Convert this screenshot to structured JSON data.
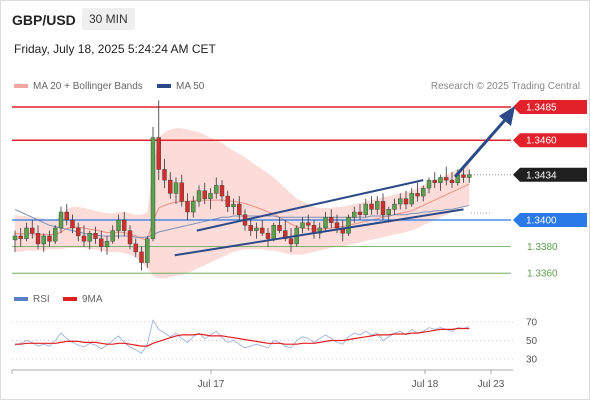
{
  "header": {
    "pair": "GBP/USD",
    "timeframe": "30 MIN",
    "datetime": "Friday, July 18, 2025 5:24:24 AM CET"
  },
  "legend": {
    "items": [
      {
        "label": "MA 20 + Bollinger Bands",
        "color": "#f4a7a0"
      },
      {
        "label": "MA 50",
        "color": "#2c4a87"
      }
    ],
    "credit": "Research © 2025 Trading Central"
  },
  "rsi_legend": {
    "items": [
      {
        "label": "RSI",
        "color": "#5b7ec9"
      },
      {
        "label": "9MA",
        "color": "#e02020"
      }
    ]
  },
  "colors": {
    "resistance": "#e3212b",
    "support": "#2979e8",
    "target_line": "#5aa14c",
    "bull_candle": "#5aa14c",
    "bear_candle": "#d0302b",
    "bb_fill": "#fbd6d2",
    "channel": "#2c4a87"
  },
  "chart_data": [
    {
      "type": "candlestick",
      "title": "GBP/USD",
      "xticks": [
        "Jul 17",
        "Jul 18",
        "Jul 23"
      ],
      "ylim": [
        1.3348,
        1.3493
      ],
      "levels": [
        {
          "value": 1.3485,
          "label": "1.3485",
          "kind": "resistance"
        },
        {
          "value": 1.346,
          "label": "1.3460",
          "kind": "resistance"
        },
        {
          "value": 1.3434,
          "label": "1.3434",
          "kind": "last_price"
        },
        {
          "value": 1.34,
          "label": "1.3400",
          "kind": "pivot"
        },
        {
          "value": 1.338,
          "label": "1.3380",
          "kind": "support"
        },
        {
          "value": 1.336,
          "label": "1.3360",
          "kind": "support"
        }
      ],
      "ohlc": [
        [
          1.3385,
          1.3392,
          1.3376,
          1.3388
        ],
        [
          1.3388,
          1.3394,
          1.338,
          1.3386
        ],
        [
          1.3386,
          1.3398,
          1.3384,
          1.3394
        ],
        [
          1.3394,
          1.34,
          1.3386,
          1.339
        ],
        [
          1.339,
          1.3396,
          1.3378,
          1.3382
        ],
        [
          1.3382,
          1.339,
          1.3376,
          1.3388
        ],
        [
          1.3388,
          1.3392,
          1.338,
          1.3384
        ],
        [
          1.3384,
          1.3396,
          1.3382,
          1.3394
        ],
        [
          1.3394,
          1.341,
          1.339,
          1.3406
        ],
        [
          1.3406,
          1.3412,
          1.3396,
          1.34
        ],
        [
          1.34,
          1.3404,
          1.339,
          1.3394
        ],
        [
          1.3394,
          1.3398,
          1.3384,
          1.3388
        ],
        [
          1.3388,
          1.3396,
          1.338,
          1.3384
        ],
        [
          1.3384,
          1.3392,
          1.3378,
          1.339
        ],
        [
          1.339,
          1.3395,
          1.3382,
          1.3386
        ],
        [
          1.3386,
          1.3392,
          1.3376,
          1.338
        ],
        [
          1.338,
          1.3388,
          1.3374,
          1.3384
        ],
        [
          1.3384,
          1.3396,
          1.3382,
          1.3392
        ],
        [
          1.3392,
          1.3404,
          1.3386,
          1.34
        ],
        [
          1.34,
          1.3406,
          1.3388,
          1.3392
        ],
        [
          1.3392,
          1.3396,
          1.3378,
          1.3382
        ],
        [
          1.3382,
          1.3386,
          1.3372,
          1.3376
        ],
        [
          1.3376,
          1.338,
          1.3362,
          1.3368
        ],
        [
          1.3368,
          1.3388,
          1.3364,
          1.3386
        ],
        [
          1.3386,
          1.347,
          1.3384,
          1.3462
        ],
        [
          1.3462,
          1.349,
          1.343,
          1.3438
        ],
        [
          1.3438,
          1.3446,
          1.3424,
          1.343
        ],
        [
          1.343,
          1.3436,
          1.3416,
          1.342
        ],
        [
          1.342,
          1.3432,
          1.3412,
          1.3428
        ],
        [
          1.3428,
          1.3434,
          1.341,
          1.3414
        ],
        [
          1.3414,
          1.342,
          1.34,
          1.3406
        ],
        [
          1.3406,
          1.3418,
          1.3402,
          1.3414
        ],
        [
          1.3414,
          1.3426,
          1.341,
          1.3422
        ],
        [
          1.3422,
          1.3428,
          1.3412,
          1.3416
        ],
        [
          1.3416,
          1.3424,
          1.3408,
          1.342
        ],
        [
          1.342,
          1.3432,
          1.3416,
          1.3426
        ],
        [
          1.3426,
          1.343,
          1.3414,
          1.3418
        ],
        [
          1.3418,
          1.3422,
          1.3406,
          1.341
        ],
        [
          1.341,
          1.3416,
          1.3404,
          1.3412
        ],
        [
          1.3412,
          1.3418,
          1.34,
          1.3404
        ],
        [
          1.3404,
          1.3408,
          1.3392,
          1.3396
        ],
        [
          1.3396,
          1.34,
          1.3388,
          1.3392
        ],
        [
          1.3392,
          1.3398,
          1.3386,
          1.3394
        ],
        [
          1.3394,
          1.34,
          1.3388,
          1.339
        ],
        [
          1.339,
          1.3394,
          1.338,
          1.3386
        ],
        [
          1.3386,
          1.3398,
          1.3384,
          1.3396
        ],
        [
          1.3396,
          1.3402,
          1.339,
          1.3392
        ],
        [
          1.3392,
          1.34,
          1.3384,
          1.3386
        ],
        [
          1.3386,
          1.3394,
          1.3376,
          1.3382
        ],
        [
          1.3382,
          1.3396,
          1.338,
          1.3394
        ],
        [
          1.3394,
          1.3402,
          1.339,
          1.3398
        ],
        [
          1.3398,
          1.3404,
          1.3392,
          1.3396
        ],
        [
          1.3396,
          1.34,
          1.3386,
          1.339
        ],
        [
          1.339,
          1.3398,
          1.3386,
          1.3394
        ],
        [
          1.3394,
          1.3406,
          1.3392,
          1.3402
        ],
        [
          1.3402,
          1.3408,
          1.3394,
          1.3398
        ],
        [
          1.3398,
          1.3404,
          1.339,
          1.3394
        ],
        [
          1.3394,
          1.34,
          1.3384,
          1.339
        ],
        [
          1.339,
          1.3404,
          1.3388,
          1.3402
        ],
        [
          1.3402,
          1.341,
          1.3398,
          1.3406
        ],
        [
          1.3406,
          1.3412,
          1.34,
          1.3404
        ],
        [
          1.3404,
          1.3416,
          1.3402,
          1.3412
        ],
        [
          1.3412,
          1.3418,
          1.3404,
          1.3408
        ],
        [
          1.3408,
          1.3418,
          1.3404,
          1.3414
        ],
        [
          1.3414,
          1.342,
          1.34,
          1.3404
        ],
        [
          1.3404,
          1.341,
          1.3398,
          1.3408
        ],
        [
          1.3408,
          1.3416,
          1.3404,
          1.3412
        ],
        [
          1.3412,
          1.342,
          1.3408,
          1.3416
        ],
        [
          1.3416,
          1.3422,
          1.3408,
          1.3412
        ],
        [
          1.3412,
          1.3424,
          1.341,
          1.342
        ],
        [
          1.342,
          1.3428,
          1.3414,
          1.3418
        ],
        [
          1.3418,
          1.3426,
          1.3414,
          1.3424
        ],
        [
          1.3424,
          1.3432,
          1.342,
          1.343
        ],
        [
          1.343,
          1.3436,
          1.3424,
          1.3428
        ],
        [
          1.3428,
          1.3434,
          1.3422,
          1.3432
        ],
        [
          1.3432,
          1.344,
          1.3426,
          1.343
        ],
        [
          1.343,
          1.3436,
          1.3424,
          1.3428
        ],
        [
          1.3428,
          1.3438,
          1.3426,
          1.3434
        ],
        [
          1.3434,
          1.3438,
          1.3428,
          1.3432
        ],
        [
          1.3432,
          1.3438,
          1.3428,
          1.3434
        ]
      ],
      "bb_upper": [
        1.3404,
        1.3403,
        1.3403,
        1.3402,
        1.3402,
        1.3401,
        1.34,
        1.34,
        1.3404,
        1.3408,
        1.341,
        1.341,
        1.3409,
        1.3408,
        1.3407,
        1.3406,
        1.3405,
        1.3405,
        1.3406,
        1.3406,
        1.3405,
        1.3404,
        1.3404,
        1.3406,
        1.344,
        1.3462,
        1.3466,
        1.3468,
        1.3469,
        1.3469,
        1.3468,
        1.3467,
        1.3466,
        1.3464,
        1.3462,
        1.346,
        1.3458,
        1.3455,
        1.3452,
        1.345,
        1.3447,
        1.3444,
        1.3441,
        1.3438,
        1.3435,
        1.3432,
        1.3428,
        1.3424,
        1.342,
        1.3416,
        1.3414,
        1.3412,
        1.341,
        1.3409,
        1.3409,
        1.3409,
        1.341,
        1.341,
        1.3411,
        1.3412,
        1.3413,
        1.3414,
        1.3415,
        1.3416,
        1.3417,
        1.3418,
        1.3419,
        1.342,
        1.3421,
        1.3422,
        1.3424,
        1.3426,
        1.3428,
        1.343,
        1.3432,
        1.3434,
        1.3436,
        1.3438,
        1.344,
        1.3442
      ],
      "bb_lower": [
        1.3376,
        1.3376,
        1.3377,
        1.3377,
        1.3377,
        1.3377,
        1.3378,
        1.3378,
        1.3378,
        1.3379,
        1.3379,
        1.3379,
        1.3379,
        1.3378,
        1.3378,
        1.3377,
        1.3376,
        1.3376,
        1.3376,
        1.3375,
        1.3374,
        1.3372,
        1.3368,
        1.3364,
        1.3358,
        1.3356,
        1.3356,
        1.3357,
        1.3358,
        1.3359,
        1.336,
        1.3362,
        1.3364,
        1.3366,
        1.3368,
        1.337,
        1.3372,
        1.3374,
        1.3376,
        1.3377,
        1.3378,
        1.3378,
        1.3378,
        1.3378,
        1.3377,
        1.3377,
        1.3376,
        1.3375,
        1.3374,
        1.3374,
        1.3374,
        1.3375,
        1.3376,
        1.3377,
        1.3378,
        1.3379,
        1.338,
        1.338,
        1.3381,
        1.3382,
        1.3383,
        1.3384,
        1.3385,
        1.3386,
        1.3387,
        1.3388,
        1.3389,
        1.339,
        1.3391,
        1.3392,
        1.3394,
        1.3396,
        1.3398,
        1.34,
        1.3402,
        1.3404,
        1.3406,
        1.3408,
        1.341,
        1.3412
      ],
      "ma50": [
        1.3408,
        1.3406,
        1.3404,
        1.3402,
        1.34,
        1.3398,
        1.3396,
        1.3395,
        1.3394,
        1.3393,
        1.3392,
        1.3391,
        1.339,
        1.3389,
        1.3389,
        1.3388,
        1.3388,
        1.3388,
        1.3388,
        1.3388,
        1.3388,
        1.3387,
        1.3387,
        1.3387,
        1.3389,
        1.3391,
        1.3392,
        1.3393,
        1.3394,
        1.3395,
        1.3396,
        1.3397,
        1.3398,
        1.3399,
        1.34,
        1.3401,
        1.3402,
        1.3402,
        1.3403,
        1.3403,
        1.3403,
        1.3403,
        1.3403,
        1.3403,
        1.3403,
        1.3403,
        1.3402,
        1.3402,
        1.3402,
        1.3402,
        1.3402,
        1.3402,
        1.3402,
        1.3402,
        1.3402,
        1.3402,
        1.3402,
        1.3402,
        1.3402,
        1.3402,
        1.3402,
        1.3402,
        1.3403,
        1.3403,
        1.3403,
        1.3403,
        1.3404,
        1.3404,
        1.3404,
        1.3405,
        1.3405,
        1.3406,
        1.3406,
        1.3407,
        1.3407,
        1.3408,
        1.3408,
        1.3409,
        1.341,
        1.3411
      ],
      "channel": {
        "lower": [
          [
            33,
            1.3384
          ],
          [
            78,
            1.3408
          ]
        ],
        "upper": [
          [
            33,
            1.3392
          ],
          [
            71,
            1.343
          ]
        ]
      },
      "projection": [
        [
          80,
          1.3434
        ],
        [
          84,
          1.3482
        ]
      ]
    },
    {
      "type": "line",
      "title": "RSI",
      "ylim": [
        25,
        75
      ],
      "yticks": [
        70,
        50,
        30
      ],
      "series": [
        {
          "name": "RSI",
          "values": [
            45,
            47,
            50,
            48,
            44,
            46,
            44,
            50,
            58,
            52,
            48,
            45,
            43,
            47,
            45,
            41,
            45,
            50,
            55,
            48,
            43,
            40,
            36,
            46,
            72,
            62,
            58,
            54,
            58,
            52,
            48,
            54,
            58,
            52,
            56,
            60,
            53,
            48,
            50,
            46,
            42,
            44,
            46,
            44,
            42,
            50,
            48,
            44,
            42,
            50,
            54,
            52,
            48,
            52,
            56,
            52,
            48,
            46,
            54,
            58,
            56,
            60,
            56,
            58,
            50,
            54,
            58,
            60,
            56,
            62,
            58,
            60,
            64,
            62,
            64,
            62,
            60,
            64,
            63,
            65
          ]
        },
        {
          "name": "9MA",
          "values": [
            46,
            46,
            47,
            47,
            47,
            47,
            47,
            47,
            48,
            49,
            49,
            49,
            48,
            48,
            48,
            47,
            46,
            46,
            47,
            47,
            46,
            45,
            44,
            44,
            47,
            49,
            51,
            53,
            55,
            56,
            56,
            56,
            57,
            56,
            55,
            55,
            55,
            54,
            53,
            52,
            51,
            50,
            49,
            48,
            47,
            47,
            47,
            46,
            46,
            46,
            47,
            47,
            47,
            48,
            49,
            50,
            50,
            50,
            51,
            52,
            53,
            54,
            55,
            56,
            56,
            56,
            57,
            57,
            57,
            58,
            58,
            59,
            60,
            61,
            62,
            62,
            62,
            63,
            63,
            63
          ]
        }
      ]
    }
  ]
}
